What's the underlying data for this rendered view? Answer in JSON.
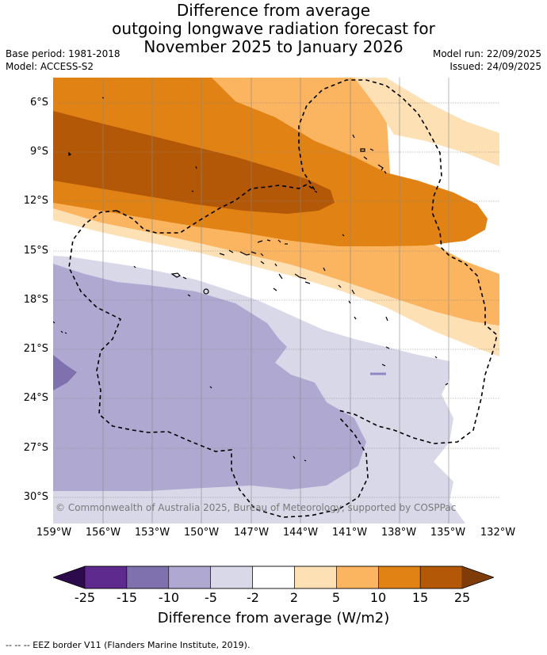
{
  "title": {
    "line1": "Difference from average",
    "line2": "outgoing longwave radiation forecast for",
    "line3": "November 2025 to January 2026"
  },
  "meta": {
    "base_period": "Base period: 1981-2018",
    "model": "Model: ACCESS-S2",
    "model_run": "Model run: 22/09/2025",
    "issued": "Issued: 24/09/2025"
  },
  "map": {
    "copyright": "© Commonwealth of Australia 2025, Bureau of Meteorology, supported by COSPPac",
    "lat_labels": [
      "6°S",
      "9°S",
      "12°S",
      "15°S",
      "18°S",
      "21°S",
      "24°S",
      "27°S",
      "30°S"
    ],
    "lon_labels": [
      "159°W",
      "156°W",
      "153°W",
      "150°W",
      "147°W",
      "144°W",
      "141°W",
      "138°W",
      "135°W",
      "132°W"
    ],
    "lat_range": [
      -32,
      -5
    ],
    "lon_range": [
      -159,
      -132
    ],
    "layers": [
      "olr-anomaly-shading",
      "eez-border",
      "coastlines"
    ]
  },
  "colorbar": {
    "ticks": [
      "-25",
      "-15",
      "-10",
      "-5",
      "-2",
      "2",
      "5",
      "10",
      "15",
      "25"
    ],
    "colors": {
      "below": "#2d0a4b",
      "bins": [
        "#5e2a8e",
        "#7f70ae",
        "#afa9d1",
        "#d8d8e9",
        "#ffffff",
        "#fde0b4",
        "#fbb45f",
        "#e08214",
        "#b35806"
      ],
      "above": "#7f3b08"
    },
    "label": "Difference from average (W/m2)"
  },
  "footnote": "-- -- -- EEZ border V11 (Flanders Marine Institute, 2019)."
}
